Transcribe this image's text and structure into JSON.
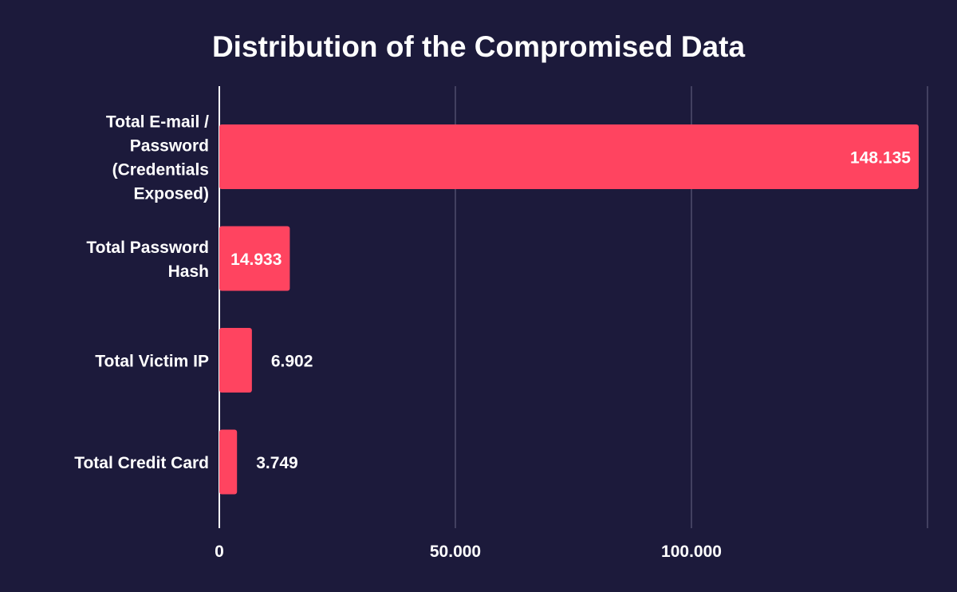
{
  "chart_data": {
    "type": "bar",
    "orientation": "horizontal",
    "title": "Distribution of the Compromised Data",
    "categories": [
      [
        "Total E-mail /",
        "Password",
        "(Credentials",
        "Exposed)"
      ],
      [
        "Total Password",
        "Hash"
      ],
      [
        "Total Victim IP"
      ],
      [
        "Total Credit Card"
      ]
    ],
    "values": [
      148135,
      14933,
      6902,
      3749
    ],
    "value_labels": [
      "148.135",
      "14.933",
      "6.902",
      "3.749"
    ],
    "xlim": [
      0,
      150000
    ],
    "xticks": [
      0,
      50000,
      100000,
      150000
    ],
    "xtick_labels": [
      "0",
      "50.000",
      "100.000",
      ""
    ],
    "grid": true,
    "colors": {
      "background": "#1c1a3b",
      "bar": "#ff4460",
      "grid": "#5c5a78",
      "text": "#ffffff"
    }
  }
}
